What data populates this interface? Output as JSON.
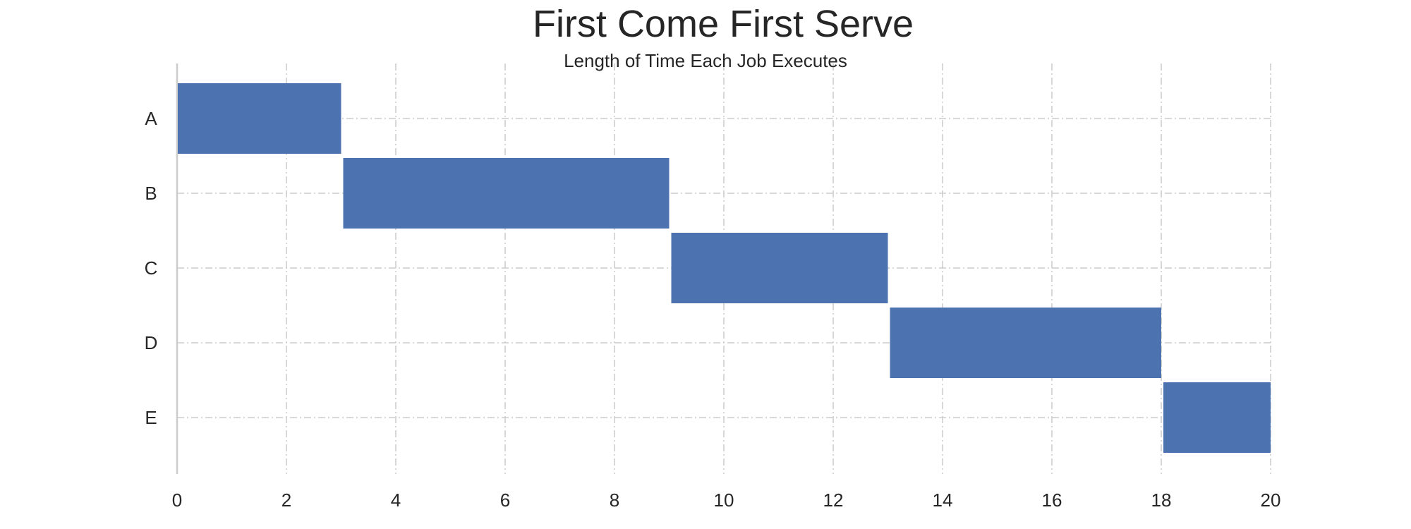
{
  "chart_data": {
    "type": "bar",
    "orientation": "horizontal",
    "title": "First Come First Serve",
    "subtitle": "Length of Time Each Job Executes",
    "xlabel": "",
    "ylabel": "",
    "xlim": [
      0,
      20
    ],
    "xticks": [
      "0",
      "2",
      "4",
      "6",
      "8",
      "10",
      "12",
      "14",
      "16",
      "18",
      "20"
    ],
    "grid": true,
    "bar_color": "#4c72b0",
    "jobs": [
      {
        "label": "A",
        "start": 0,
        "end": 3
      },
      {
        "label": "B",
        "start": 3,
        "end": 9
      },
      {
        "label": "C",
        "start": 9,
        "end": 13
      },
      {
        "label": "D",
        "start": 13,
        "end": 18
      },
      {
        "label": "E",
        "start": 18,
        "end": 20
      }
    ]
  }
}
